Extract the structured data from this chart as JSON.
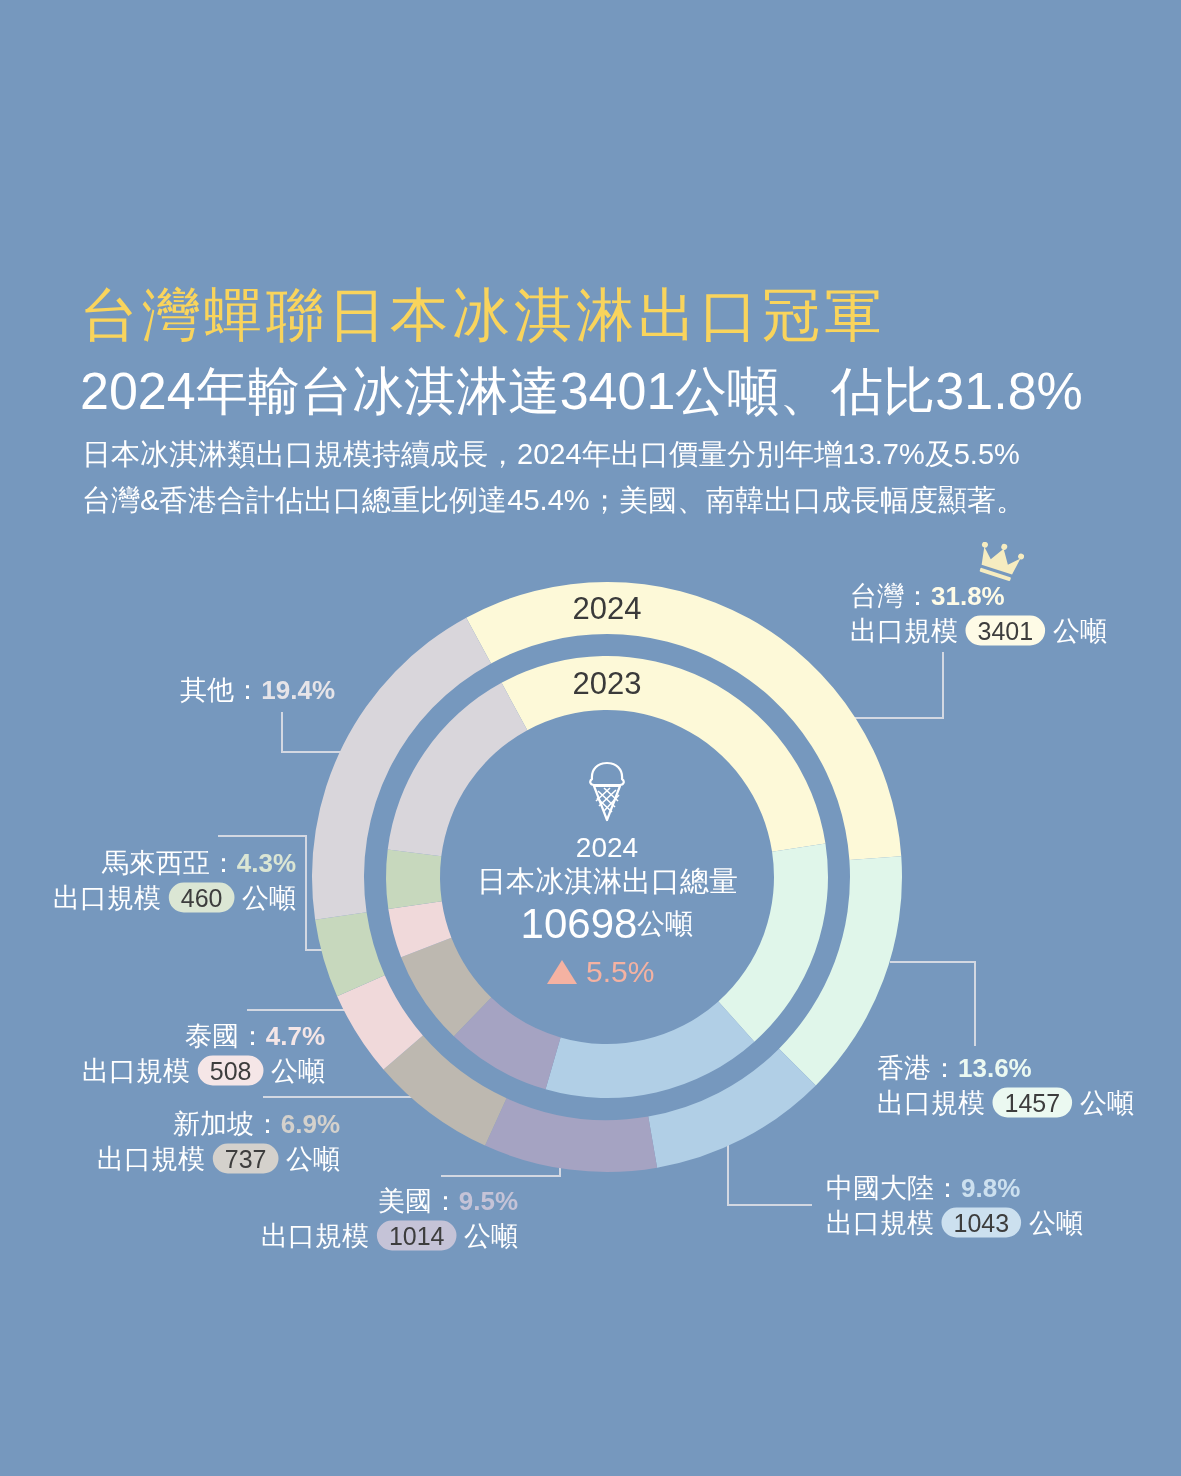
{
  "chart_data": {
    "type": "donut",
    "title": "台灣蟬聯日本冰淇淋出口冠軍",
    "subtitle": "2024年輸台冰淇淋達3401公噸、佔比31.8%",
    "categories": [
      "台灣",
      "香港",
      "中國大陸",
      "美國",
      "新加坡",
      "泰國",
      "馬來西亞",
      "其他"
    ],
    "colors": [
      "#fdf9d8",
      "#e0f6ea",
      "#b1cfe6",
      "#a5a3c2",
      "#bdb8b0",
      "#f0d9da",
      "#c7d8bd",
      "#d9d6db"
    ],
    "series": [
      {
        "name": "2024",
        "values": [
          31.8,
          13.6,
          9.8,
          9.5,
          6.9,
          4.7,
          4.3,
          19.4
        ],
        "value_labels": [
          "：31.8%",
          "：13.6%",
          "：9.8%",
          "：9.5%",
          "：6.9%",
          "：4.7%",
          "：4.3%",
          "：19.4%"
        ]
      },
      {
        "name": "2023",
        "values": [
          30.5,
          15.8,
          16.1,
          7.7,
          6.9,
          3.6,
          4.3,
          15.1
        ]
      }
    ],
    "annotations": [
      "日本冰淇淋類出口規模持續成長，2024年出口價量分別年增13.7%及5.5%",
      "台灣&香港合計佔出口總重比例達45.4%；美國、南韓出口成長幅度顯著。",
      "2024",
      "日本冰淇淋出口總量",
      "10698公噸",
      "5.5%",
      {
        "text": "出口規模 3401 公噸",
        "x": "台灣"
      },
      {
        "text": "出口規模 1457 公噸",
        "x": "香港"
      },
      {
        "text": "出口規模 1043 公噸",
        "x": "中國大陸"
      },
      {
        "text": "出口規模 1014 公噸",
        "x": "美國"
      },
      {
        "text": "出口規模 737 公噸",
        "x": "新加坡"
      },
      {
        "text": "出口規模 508 公噸",
        "x": "泰國"
      },
      {
        "text": "出口規模 460 公噸",
        "x": "馬來西亞"
      }
    ]
  }
}
